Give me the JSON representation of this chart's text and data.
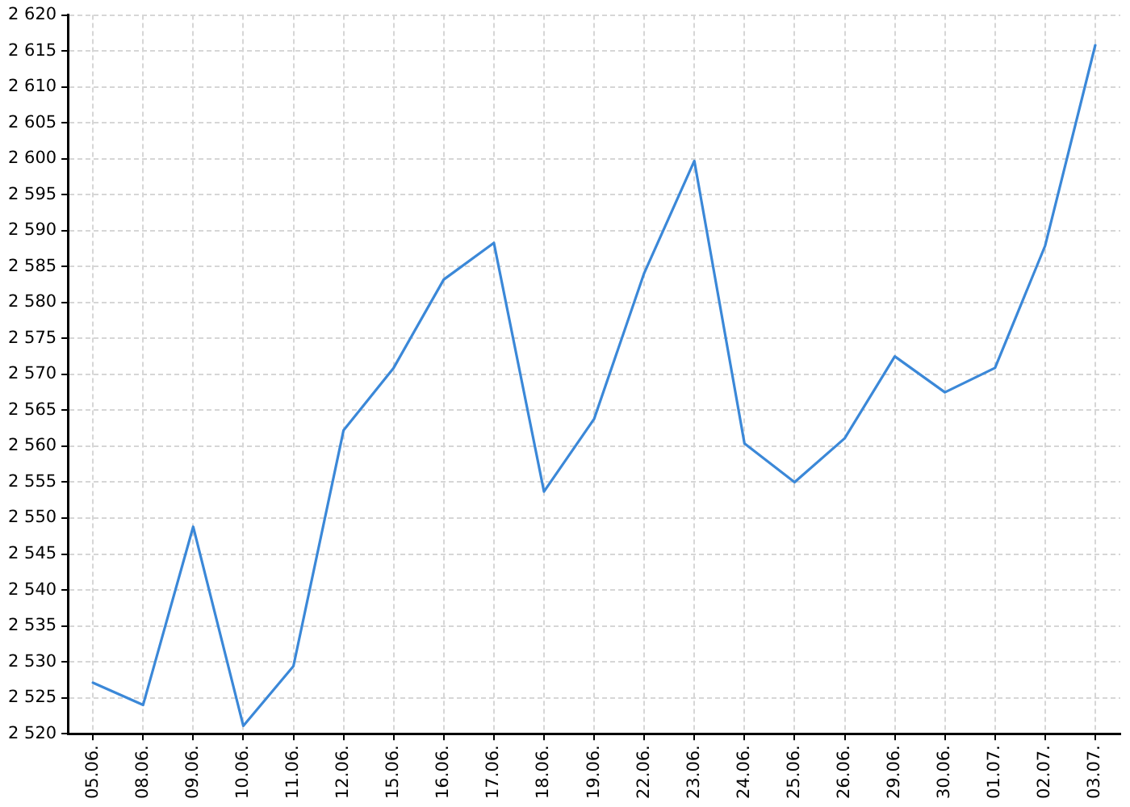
{
  "chart_data": {
    "type": "line",
    "categories": [
      "05.06.",
      "08.06.",
      "09.06.",
      "10.06.",
      "11.06.",
      "12.06.",
      "15.06.",
      "16.06.",
      "17.06.",
      "18.06.",
      "19.06.",
      "22.06.",
      "23.06.",
      "24.06.",
      "25.06.",
      "26.06.",
      "29.06.",
      "30.06.",
      "01.07.",
      "02.07.",
      "03.07."
    ],
    "series": [
      {
        "color": "#3b88d8",
        "values": [
          2527.1,
          2524.0,
          2548.8,
          2521.1,
          2529.4,
          2562.2,
          2570.9,
          2583.2,
          2588.3,
          2553.7,
          2563.8,
          2584.1,
          2599.7,
          2560.4,
          2555.0,
          2561.1,
          2572.5,
          2567.5,
          2570.9,
          2587.9,
          2615.8
        ]
      }
    ],
    "ylim": [
      2520,
      2620
    ],
    "yticks": [
      {
        "value": 2520,
        "label": "2 520"
      },
      {
        "value": 2525,
        "label": "2 525"
      },
      {
        "value": 2530,
        "label": "2 530"
      },
      {
        "value": 2535,
        "label": "2 535"
      },
      {
        "value": 2540,
        "label": "2 540"
      },
      {
        "value": 2545,
        "label": "2 545"
      },
      {
        "value": 2550,
        "label": "2 550"
      },
      {
        "value": 2555,
        "label": "2 555"
      },
      {
        "value": 2560,
        "label": "2 560"
      },
      {
        "value": 2565,
        "label": "2 565"
      },
      {
        "value": 2570,
        "label": "2 570"
      },
      {
        "value": 2575,
        "label": "2 575"
      },
      {
        "value": 2580,
        "label": "2 580"
      },
      {
        "value": 2585,
        "label": "2 585"
      },
      {
        "value": 2590,
        "label": "2 590"
      },
      {
        "value": 2595,
        "label": "2 595"
      },
      {
        "value": 2600,
        "label": "2 600"
      },
      {
        "value": 2605,
        "label": "2 605"
      },
      {
        "value": 2610,
        "label": "2 610"
      },
      {
        "value": 2615,
        "label": "2 615"
      },
      {
        "value": 2620,
        "label": "2 620"
      }
    ],
    "grid": true
  }
}
